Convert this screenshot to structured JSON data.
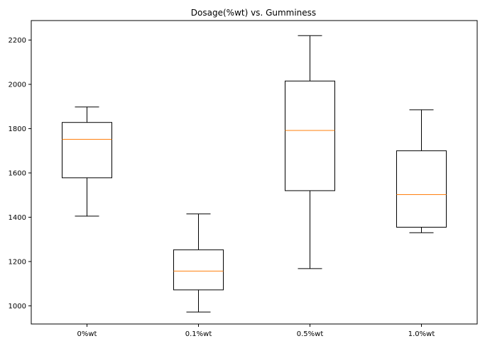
{
  "chart_data": {
    "type": "box",
    "title": "Dosage(%wt) vs. Gumminess",
    "xlabel": "",
    "ylabel": "",
    "categories": [
      "0%wt",
      "0.1%wt",
      "0.5%wt",
      "1.0%wt"
    ],
    "boxes": [
      {
        "whisker_low": 1405,
        "q1": 1578,
        "median": 1752,
        "q3": 1828,
        "whisker_high": 1898
      },
      {
        "whisker_low": 972,
        "q1": 1072,
        "median": 1157,
        "q3": 1253,
        "whisker_high": 1415
      },
      {
        "whisker_low": 1168,
        "q1": 1520,
        "median": 1792,
        "q3": 2015,
        "whisker_high": 2220
      },
      {
        "whisker_low": 1330,
        "q1": 1355,
        "median": 1502,
        "q3": 1700,
        "whisker_high": 1885
      }
    ],
    "yticks": [
      1000,
      1200,
      1400,
      1600,
      1800,
      2000,
      2200
    ],
    "ylim": [
      918,
      2288
    ],
    "grid": false,
    "colors": {
      "box": "#000000",
      "median": "#ff7f0e"
    }
  }
}
